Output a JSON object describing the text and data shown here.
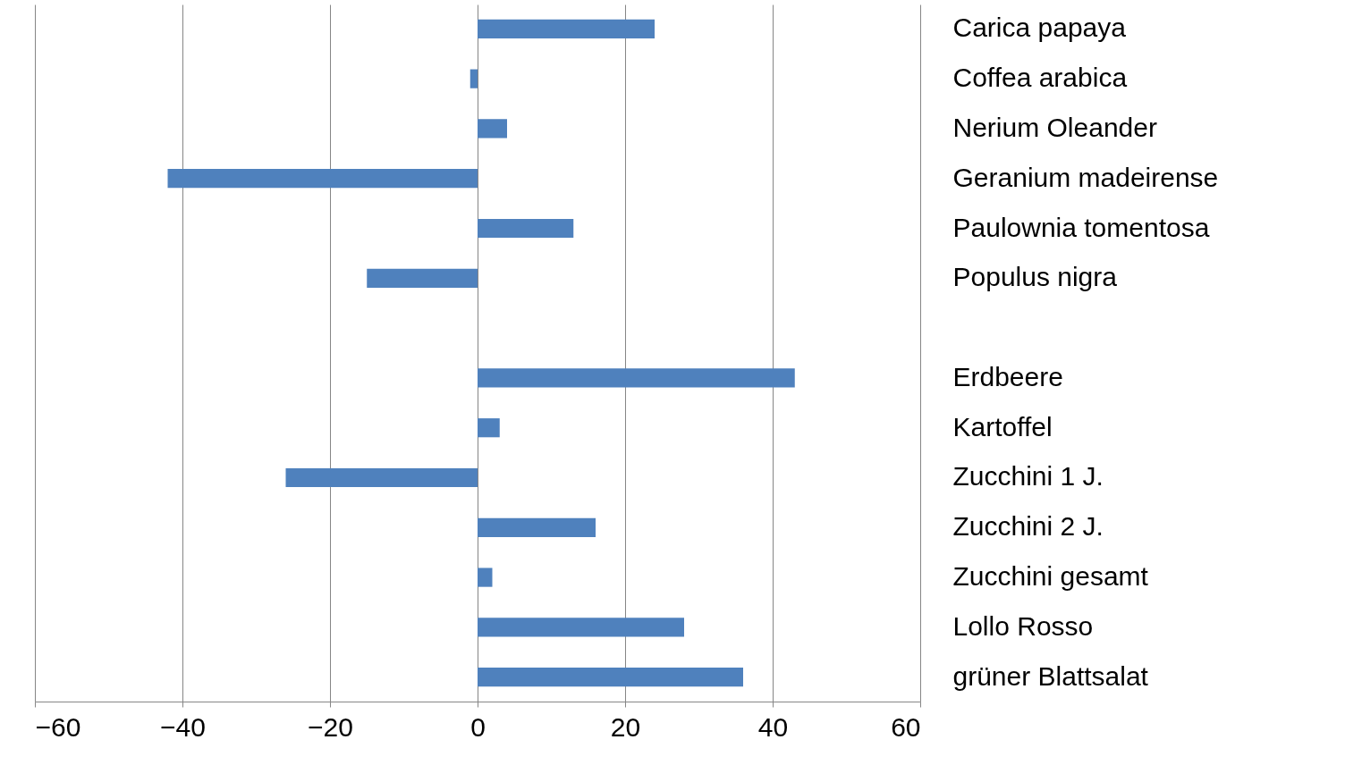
{
  "chart_data": {
    "type": "bar",
    "orientation": "horizontal",
    "categories": [
      "Carica papaya",
      "Coffea arabica",
      "Nerium Oleander",
      "Geranium madeirense",
      "Paulownia tomentosa",
      "Populus nigra",
      null,
      "Erdbeere",
      "Kartoffel",
      "Zucchini 1 J.",
      "Zucchini 2 J.",
      "Zucchini gesamt",
      "Lollo Rosso",
      "grüner Blattsalat"
    ],
    "values": [
      24,
      -1,
      4,
      -42,
      13,
      -15,
      null,
      43,
      3,
      -26,
      16,
      2,
      28,
      36
    ],
    "color": "#4f81bd",
    "xlim": [
      -60,
      60
    ],
    "xticks": [
      -60,
      -40,
      -20,
      0,
      20,
      40,
      60
    ],
    "grid": "x"
  }
}
